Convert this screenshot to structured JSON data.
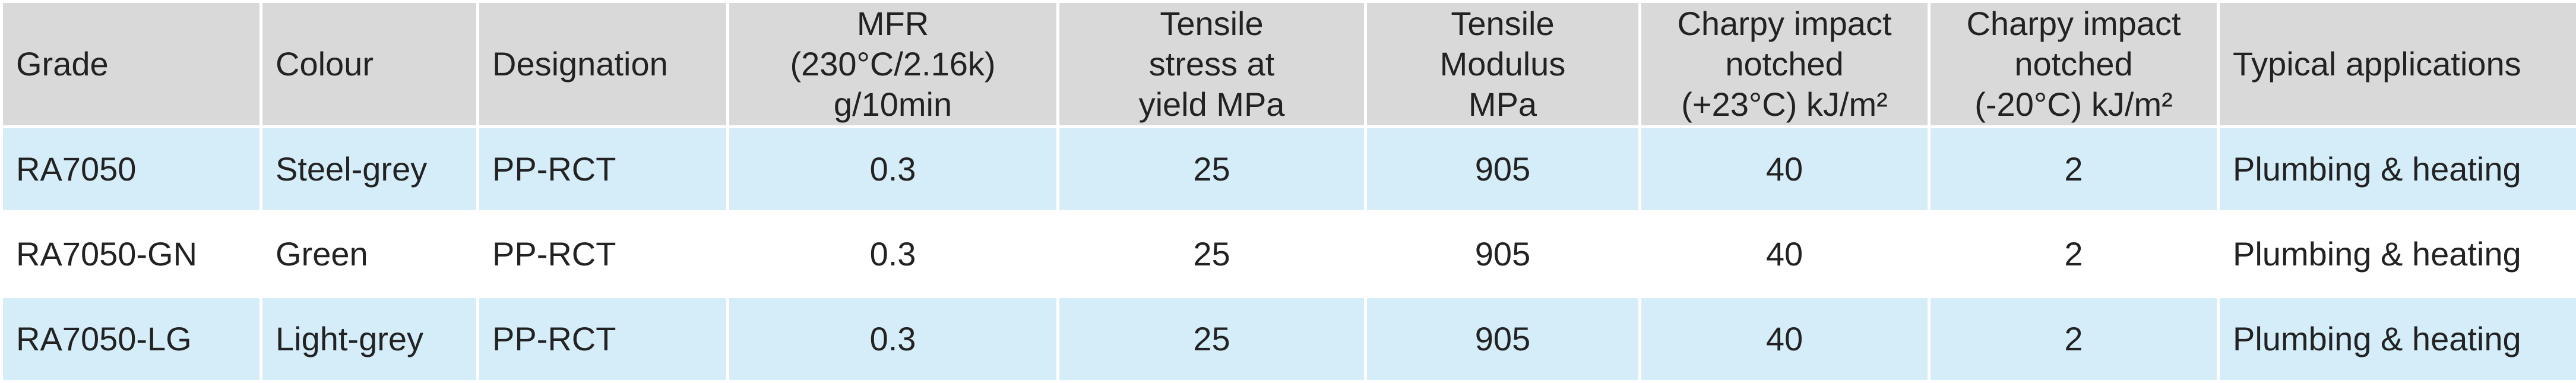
{
  "table": {
    "header": [
      "Grade",
      "Colour",
      "Designation",
      "MFR\n(230°C/2.16k)\ng/10min",
      "Tensile\nstress at\nyield MPa",
      "Tensile\nModulus\nMPa",
      "Charpy impact\nnotched\n(+23°C) kJ/m²",
      "Charpy impact\nnotched\n(-20°C) kJ/m²",
      "Typical applications"
    ],
    "rows": [
      [
        "RA7050",
        "Steel-grey",
        "PP-RCT",
        "0.3",
        "25",
        "905",
        "40",
        "2",
        "Plumbing & heating"
      ],
      [
        "RA7050-GN",
        "Green",
        "PP-RCT",
        "0.3",
        "25",
        "905",
        "40",
        "2",
        "Plumbing & heating"
      ],
      [
        "RA7050-LG",
        "Light-grey",
        "PP-RCT",
        "0.3",
        "25",
        "905",
        "40",
        "2",
        "Plumbing & heating"
      ]
    ]
  }
}
